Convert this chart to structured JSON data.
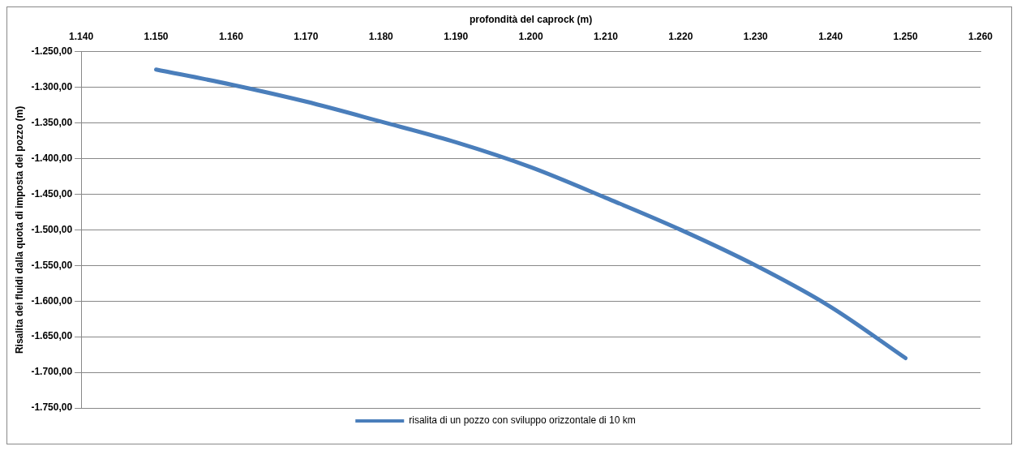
{
  "chart_data": {
    "type": "line",
    "xlabel": "profondità del caprock (m)",
    "ylabel": "Risalita dei fluidi dalla quota di imposta del pozzo (m)",
    "x": [
      1150,
      1160,
      1170,
      1180,
      1190,
      1200,
      1210,
      1220,
      1230,
      1240,
      1250
    ],
    "series": [
      {
        "name": "risalita di un pozzo con sviluppo orizzontale di 10 km",
        "color": "#4a7ebb",
        "values": [
          -1275,
          -1296,
          -1320,
          -1348,
          -1377,
          -1412,
          -1455,
          -1500,
          -1550,
          -1608,
          -1680
        ]
      }
    ],
    "xlim": [
      1140,
      1260
    ],
    "xticks": [
      {
        "value": 1140,
        "label": "1.140"
      },
      {
        "value": 1150,
        "label": "1.150"
      },
      {
        "value": 1160,
        "label": "1.160"
      },
      {
        "value": 1170,
        "label": "1.170"
      },
      {
        "value": 1180,
        "label": "1.180"
      },
      {
        "value": 1190,
        "label": "1.190"
      },
      {
        "value": 1200,
        "label": "1.200"
      },
      {
        "value": 1210,
        "label": "1.210"
      },
      {
        "value": 1220,
        "label": "1.220"
      },
      {
        "value": 1230,
        "label": "1.230"
      },
      {
        "value": 1240,
        "label": "1.240"
      },
      {
        "value": 1250,
        "label": "1.250"
      },
      {
        "value": 1260,
        "label": "1.260"
      }
    ],
    "ylim": [
      -1750,
      -1250
    ],
    "yticks": [
      {
        "value": -1750,
        "label": "-1.750,00"
      },
      {
        "value": -1700,
        "label": "-1.700,00"
      },
      {
        "value": -1650,
        "label": "-1.650,00"
      },
      {
        "value": -1600,
        "label": "-1.600,00"
      },
      {
        "value": -1550,
        "label": "-1.550,00"
      },
      {
        "value": -1500,
        "label": "-1.500,00"
      },
      {
        "value": -1450,
        "label": "-1.450,00"
      },
      {
        "value": -1400,
        "label": "-1.400,00"
      },
      {
        "value": -1350,
        "label": "-1.350,00"
      },
      {
        "value": -1300,
        "label": "-1.300,00"
      },
      {
        "value": -1250,
        "label": "-1.250,00"
      }
    ],
    "grid": "y",
    "legend": "bottom",
    "marker": "none",
    "line_style": "solid"
  }
}
